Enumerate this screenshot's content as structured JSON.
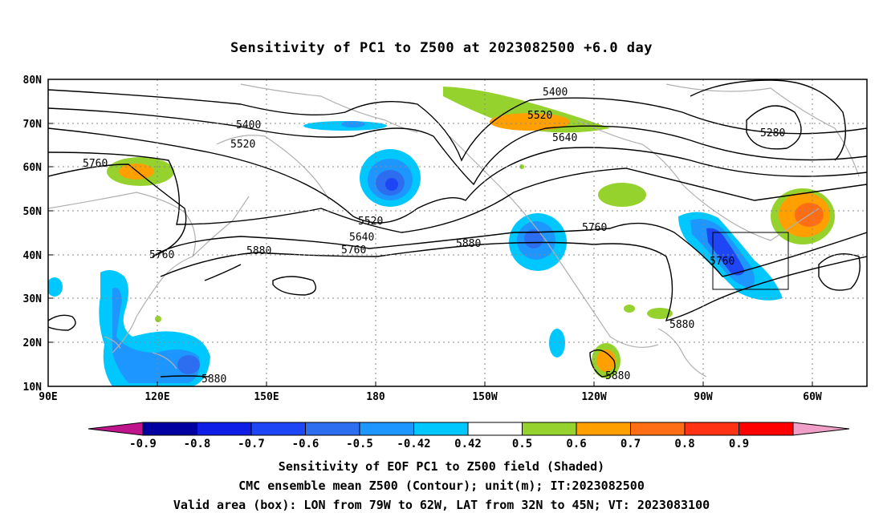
{
  "title": "Sensitivity of PC1 to Z500 at 2023082500 +6.0 day",
  "axes": {
    "lat_labels": [
      "80N",
      "70N",
      "60N",
      "50N",
      "40N",
      "30N",
      "20N",
      "10N"
    ],
    "lat_values": [
      80,
      70,
      60,
      50,
      40,
      30,
      20,
      10
    ],
    "lon_labels": [
      "90E",
      "120E",
      "150E",
      "180",
      "150W",
      "120W",
      "90W",
      "60W"
    ],
    "lon_values": [
      90,
      120,
      150,
      180,
      210,
      240,
      270,
      300
    ]
  },
  "contour_labels": [
    {
      "text": "5400"
    },
    {
      "text": "5400"
    },
    {
      "text": "5520"
    },
    {
      "text": "5520"
    },
    {
      "text": "5520"
    },
    {
      "text": "5640"
    },
    {
      "text": "5640"
    },
    {
      "text": "5760"
    },
    {
      "text": "5760"
    },
    {
      "text": "5760"
    },
    {
      "text": "5760"
    },
    {
      "text": "5760"
    },
    {
      "text": "5880"
    },
    {
      "text": "5880"
    },
    {
      "text": "5880"
    },
    {
      "text": "5880"
    },
    {
      "text": "5880"
    },
    {
      "text": "5280"
    }
  ],
  "colorbar": {
    "labels": [
      "-0.9",
      "-0.8",
      "-0.7",
      "-0.6",
      "-0.5",
      "-0.42",
      "0.42",
      "0.5",
      "0.6",
      "0.7",
      "0.8",
      "0.9"
    ],
    "colors": [
      "#0000a0",
      "#0f1ee6",
      "#1e46f5",
      "#2d6ef0",
      "#1e96ff",
      "#00c8ff",
      "#ffffff",
      "#96d22d",
      "#ffa000",
      "#ff6e14",
      "#ff3214",
      "#ff0000"
    ],
    "low_extend_color": "#c0148c",
    "high_extend_color": "#f0a0c8"
  },
  "captions": {
    "line1": "Sensitivity of EOF PC1 to Z500 field (Shaded)",
    "line2": "CMC ensemble mean Z500 (Contour); unit(m); IT:2023082500",
    "line3": "Valid area (box): LON from 79W to 62W, LAT from 32N to 45N; VT: 2023083100"
  }
}
